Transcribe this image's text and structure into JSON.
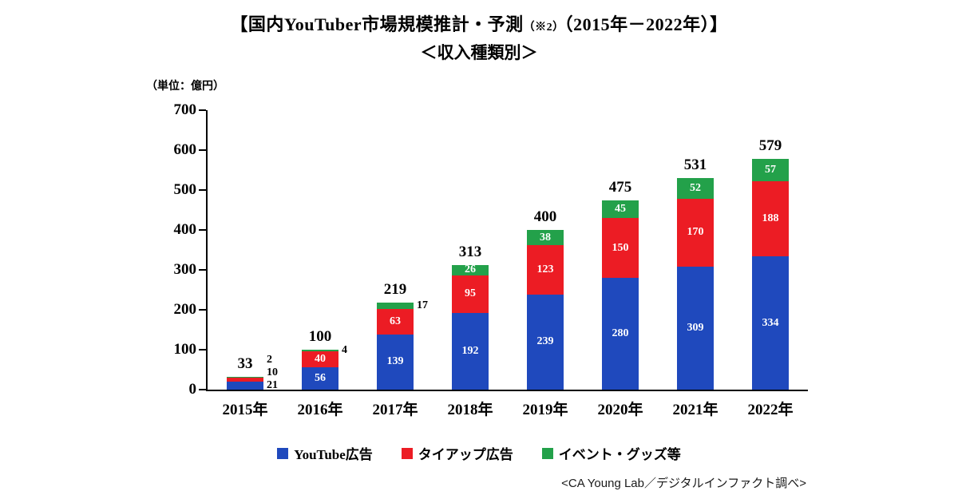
{
  "title": {
    "main": "【国内YouTuber市場規模推計・予測",
    "note": "（※2）",
    "range": "（2015年－2022年）】"
  },
  "subtitle": "＜収入種類別＞",
  "unit_label": "（単位：億円）",
  "source": "<CA Young Lab／デジタルインファクト調べ>",
  "chart_data": {
    "type": "bar",
    "stacked": true,
    "title": "国内YouTuber市場規模推計・予測（2015年－2022年）収入種類別",
    "unit": "億円",
    "categories": [
      "2015年",
      "2016年",
      "2017年",
      "2018年",
      "2019年",
      "2020年",
      "2021年",
      "2022年"
    ],
    "series": [
      {
        "name": "YouTube広告",
        "color": "#1F49BD",
        "values": [
          21,
          56,
          139,
          192,
          239,
          280,
          309,
          334
        ]
      },
      {
        "name": "タイアップ広告",
        "color": "#EC1C24",
        "values": [
          10,
          40,
          63,
          95,
          123,
          150,
          170,
          188
        ]
      },
      {
        "name": "イベント・グッズ等",
        "color": "#23A14A",
        "values": [
          2,
          4,
          17,
          26,
          38,
          45,
          52,
          57
        ]
      }
    ],
    "totals": [
      33,
      100,
      219,
      313,
      400,
      475,
      531,
      579
    ],
    "ylim": [
      0,
      700
    ],
    "yticks": [
      0,
      100,
      200,
      300,
      400,
      500,
      600,
      700
    ],
    "grid": false,
    "legend_position": "bottom"
  }
}
